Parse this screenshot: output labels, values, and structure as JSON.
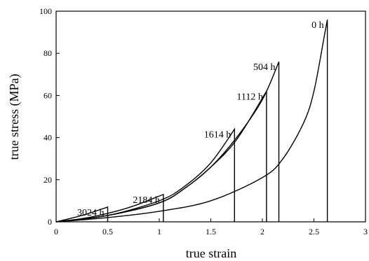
{
  "chart_data": {
    "type": "line",
    "title": "",
    "xlabel": "true strain",
    "ylabel": "true stress (MPa)",
    "xlim": [
      0,
      3
    ],
    "ylim": [
      0,
      100
    ],
    "xticks": [
      0,
      0.5,
      1,
      1.5,
      2,
      2.5,
      3
    ],
    "xtick_labels": [
      "0",
      "0.5",
      "1",
      "1.5",
      "2",
      "2.5",
      "3"
    ],
    "yticks": [
      0,
      20,
      40,
      60,
      80,
      100
    ],
    "ytick_labels": [
      "0",
      "20",
      "40",
      "60",
      "80",
      "100"
    ],
    "grid": false,
    "legend": "none",
    "series": [
      {
        "name": "0 h",
        "x": [
          0,
          0.5,
          1,
          1.5,
          2,
          2.2,
          2.4,
          2.5,
          2.6,
          2.63
        ],
        "y": [
          0,
          2,
          5,
          10,
          21,
          30,
          47,
          62,
          88,
          96
        ],
        "end_strain": 2.63
      },
      {
        "name": "504 h",
        "x": [
          0,
          0.5,
          1,
          1.25,
          1.5,
          1.75,
          2.0,
          2.16
        ],
        "y": [
          0,
          3,
          9,
          16,
          26,
          40,
          58,
          76
        ],
        "end_strain": 2.16
      },
      {
        "name": "1112 h",
        "x": [
          0,
          0.5,
          1,
          1.25,
          1.5,
          1.75,
          2.04
        ],
        "y": [
          0,
          3,
          9,
          16,
          26,
          39,
          62
        ],
        "end_strain": 2.04
      },
      {
        "name": "1614 h",
        "x": [
          0,
          0.5,
          1,
          1.25,
          1.5,
          1.73
        ],
        "y": [
          0,
          3,
          10,
          17,
          28,
          44
        ],
        "end_strain": 1.73
      },
      {
        "name": "2184 h",
        "x": [
          0,
          0.25,
          0.5,
          0.75,
          1.04
        ],
        "y": [
          0,
          1.5,
          4,
          7.5,
          13
        ],
        "end_strain": 1.04
      },
      {
        "name": "3024 h",
        "x": [
          0,
          0.25,
          0.5
        ],
        "y": [
          0,
          3,
          7
        ],
        "end_strain": 0.5
      }
    ]
  }
}
